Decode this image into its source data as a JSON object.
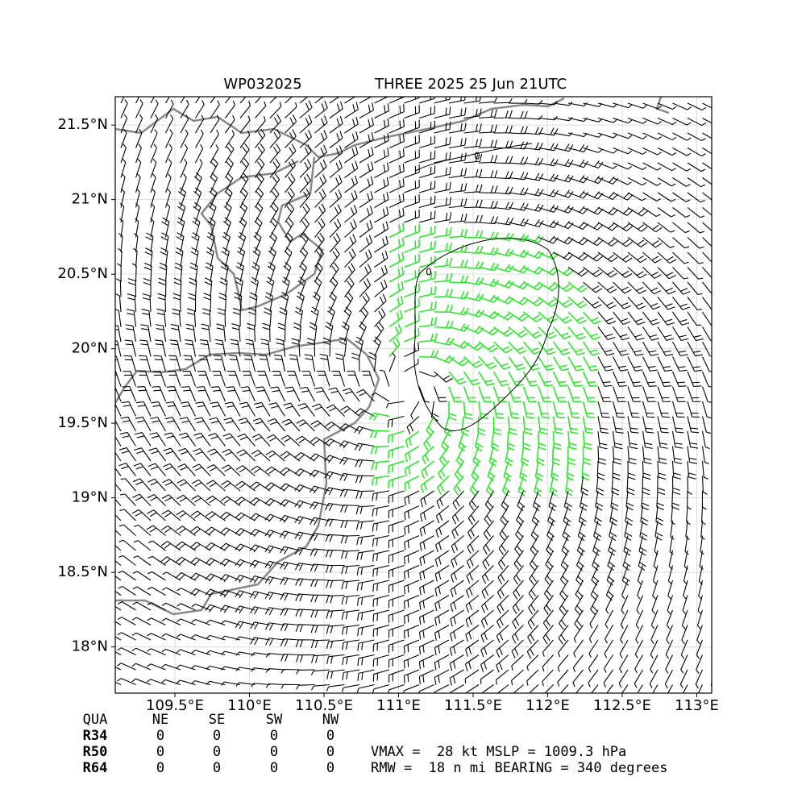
{
  "chart_data": {
    "type": "map",
    "title_left": "WP032025",
    "title_right": "THREE 2025 25 Jun 21UTC",
    "xlim": [
      109.1,
      113.1
    ],
    "ylim": [
      17.69,
      21.69
    ],
    "xticks": [
      {
        "value": 109.5,
        "label": "109.5°E"
      },
      {
        "value": 110,
        "label": "110°E"
      },
      {
        "value": 110.5,
        "label": "110.5°E"
      },
      {
        "value": 111,
        "label": "111°E"
      },
      {
        "value": 111.5,
        "label": "111.5°E"
      },
      {
        "value": 112,
        "label": "112°E"
      },
      {
        "value": 112.5,
        "label": "112.5°E"
      },
      {
        "value": 113,
        "label": "113°E"
      }
    ],
    "yticks": [
      {
        "value": 18,
        "label": "18°N"
      },
      {
        "value": 18.5,
        "label": "18.5°N"
      },
      {
        "value": 19,
        "label": "19°N"
      },
      {
        "value": 19.5,
        "label": "19.5°N"
      },
      {
        "value": 20,
        "label": "20°N"
      },
      {
        "value": 20.5,
        "label": "20.5°N"
      },
      {
        "value": 21,
        "label": "21°N"
      },
      {
        "value": 21.5,
        "label": "21.5°N"
      }
    ],
    "grid": true,
    "contour_labels": [
      "0",
      "0"
    ]
  },
  "table": {
    "header": [
      "QUA",
      "NE",
      "SE",
      "SW",
      "NW"
    ],
    "rows": [
      [
        "R34",
        0,
        0,
        0,
        0
      ],
      [
        "R50",
        0,
        0,
        0,
        0
      ],
      [
        "R64",
        0,
        0,
        0,
        0
      ]
    ]
  },
  "summary": [
    "VMAX =  28 kt MSLP = 1009.3 hPa",
    "RMW =  18 n mi BEARING = 340 degrees"
  ]
}
